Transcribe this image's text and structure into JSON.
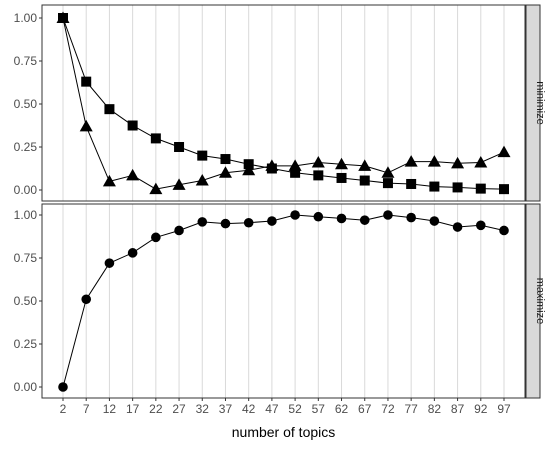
{
  "chart_data": {
    "type": "line",
    "x": [
      2,
      7,
      12,
      17,
      22,
      27,
      32,
      37,
      42,
      47,
      52,
      57,
      62,
      67,
      72,
      77,
      82,
      87,
      92,
      97
    ],
    "xlabel": "number of topics",
    "ylabel": "",
    "grid": true,
    "legend": "none",
    "panels": [
      {
        "strip": "minimize",
        "ylim": [
          0,
          1
        ],
        "yticks": [
          "0.00",
          "0.25",
          "0.50",
          "0.75",
          "1.00"
        ],
        "series": [
          {
            "marker": "square",
            "values": [
              1.0,
              0.63,
              0.47,
              0.375,
              0.3,
              0.25,
              0.2,
              0.18,
              0.15,
              0.125,
              0.1,
              0.085,
              0.07,
              0.055,
              0.04,
              0.035,
              0.02,
              0.015,
              0.008,
              0.005
            ]
          },
          {
            "marker": "triangle",
            "values": [
              1.0,
              0.37,
              0.05,
              0.085,
              0.005,
              0.03,
              0.055,
              0.1,
              0.115,
              0.14,
              0.14,
              0.16,
              0.15,
              0.14,
              0.1,
              0.165,
              0.165,
              0.155,
              0.16,
              0.22
            ]
          }
        ]
      },
      {
        "strip": "maximize",
        "ylim": [
          0,
          1
        ],
        "yticks": [
          "0.00",
          "0.25",
          "0.50",
          "0.75",
          "1.00"
        ],
        "series": [
          {
            "marker": "circle",
            "values": [
              0.0,
              0.51,
              0.72,
              0.78,
              0.87,
              0.91,
              0.96,
              0.95,
              0.955,
              0.965,
              1.0,
              0.99,
              0.98,
              0.97,
              1.0,
              0.985,
              0.965,
              0.93,
              0.94,
              0.91
            ]
          }
        ]
      }
    ],
    "colors": {
      "line": "#000000",
      "grid": "#d9d9d9",
      "strip_background": "#d9d9d9",
      "strip_border": "#333333",
      "axis_text": "#4d4d4d"
    }
  }
}
